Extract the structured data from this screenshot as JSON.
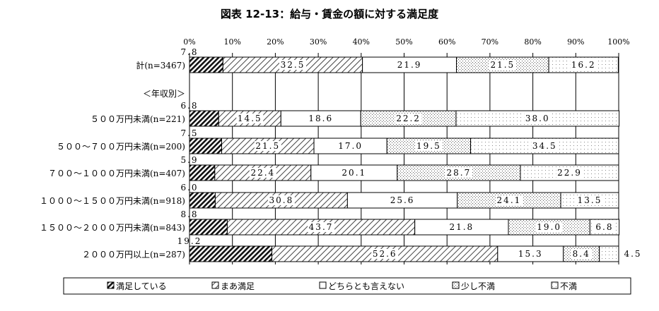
{
  "title": "図表 12-13：給与・賃金の額に対する満足度",
  "colors": {
    "satisfied": "#555555",
    "somewhat_satisfied": "#dddddd",
    "neutral": "#ffffff",
    "somewhat_dissatisfied": "#f2f2f2",
    "dissatisfied": "#f8f8f8",
    "edge": "#000000"
  },
  "chart_data": {
    "type": "bar",
    "orientation": "horizontal",
    "stacked": true,
    "percent": true,
    "title": "図表 12-13：給与・賃金の額に対する満足度",
    "xlim": [
      0,
      100
    ],
    "x_ticks": [
      "0%",
      "10%",
      "20%",
      "30%",
      "40%",
      "50%",
      "60%",
      "70%",
      "80%",
      "90%",
      "100%"
    ],
    "grid": true,
    "legend_position": "bottom",
    "categories": [
      "計(n=3467)",
      "＜年収別＞",
      "５００万円未満(n=221)",
      "５００～７００万円未満(n=200)",
      "７００～１０００万円未満(n=407)",
      "１０００～１５００万円未満(n=918)",
      "１５００～２０００万円未満(n=843)",
      "２０００万円以上(n=287)"
    ],
    "series": [
      {
        "name": "満足している",
        "values": [
          7.8,
          null,
          6.8,
          7.5,
          5.9,
          6.0,
          8.8,
          19.2
        ]
      },
      {
        "name": "まあ満足",
        "values": [
          32.5,
          null,
          14.5,
          21.5,
          22.4,
          30.8,
          43.7,
          52.6
        ]
      },
      {
        "name": "どちらとも言えない",
        "values": [
          21.9,
          null,
          18.6,
          17.0,
          20.1,
          25.6,
          21.8,
          15.3
        ]
      },
      {
        "name": "少し不満",
        "values": [
          21.5,
          null,
          22.2,
          19.5,
          28.7,
          24.1,
          19.0,
          8.4
        ]
      },
      {
        "name": "不満",
        "values": [
          16.2,
          null,
          38.0,
          34.5,
          22.9,
          13.5,
          6.8,
          4.5
        ]
      }
    ]
  }
}
